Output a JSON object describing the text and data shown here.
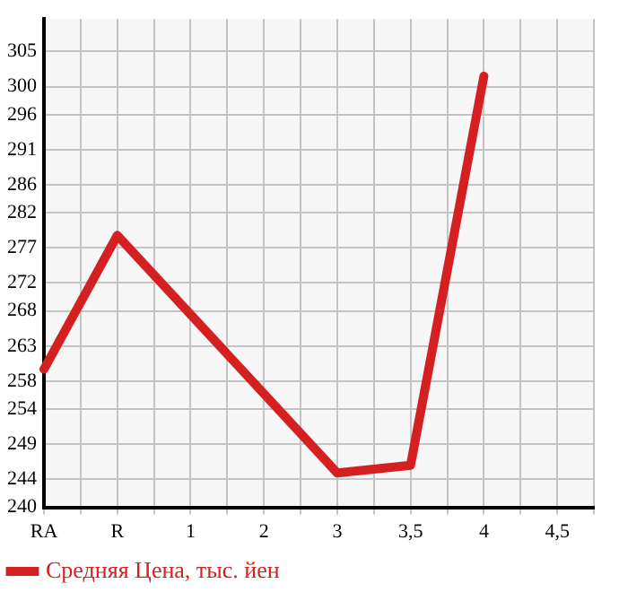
{
  "chart_data": {
    "type": "line",
    "categories": [
      "RA",
      null,
      "R",
      null,
      "1",
      null,
      "2",
      null,
      "3",
      null,
      "3,5",
      null,
      "4",
      null,
      "4,5",
      null
    ],
    "series": [
      {
        "name": "Средняя Цена, тыс. йен",
        "color": "#d42020",
        "values": [
          259.7,
          null,
          278.8,
          null,
          null,
          null,
          null,
          null,
          244.9,
          null,
          246.0,
          null,
          301.5,
          null,
          null,
          null
        ]
      }
    ],
    "ylim": [
      240,
      309.64
    ],
    "yticks": [
      240,
      244,
      249,
      254,
      258,
      263,
      268,
      272,
      277,
      282,
      286,
      291,
      296,
      300,
      305
    ],
    "grid": true,
    "legend": "bottom",
    "marker": "none",
    "line_style": "solid"
  }
}
